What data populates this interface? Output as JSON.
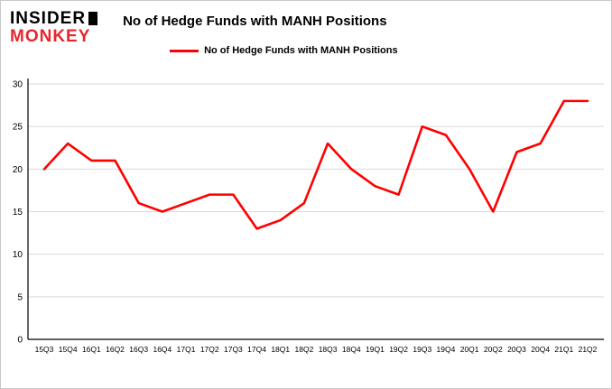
{
  "logo": {
    "line1": "INSIDER",
    "line2": "MONKEY"
  },
  "header": {
    "title": "No of Hedge Funds with MANH Positions"
  },
  "legend": {
    "label": "No of Hedge Funds with MANH Positions"
  },
  "chart_data": {
    "type": "line",
    "title": "No of Hedge Funds with MANH Positions",
    "series_name": "No of Hedge Funds with MANH Positions",
    "categories": [
      "15Q3",
      "15Q4",
      "16Q1",
      "16Q2",
      "16Q3",
      "16Q4",
      "17Q1",
      "17Q2",
      "17Q3",
      "17Q4",
      "18Q1",
      "18Q2",
      "18Q3",
      "18Q4",
      "19Q1",
      "19Q2",
      "19Q3",
      "19Q4",
      "20Q1",
      "20Q2",
      "20Q3",
      "20Q4",
      "21Q1",
      "21Q2"
    ],
    "values": [
      20,
      23,
      21,
      21,
      16,
      15,
      16,
      17,
      17,
      13,
      14,
      16,
      23,
      20,
      18,
      17,
      25,
      24,
      20,
      15,
      22,
      23,
      28,
      28
    ],
    "xlabel": "",
    "ylabel": "",
    "ylim": [
      0,
      30
    ],
    "yticks": [
      0,
      5,
      10,
      15,
      20,
      25,
      30
    ],
    "line_color": "#ff0000",
    "grid_color": "#d9d9d9",
    "axis_color": "#000000",
    "grid": true,
    "legend_position": "top-left"
  }
}
